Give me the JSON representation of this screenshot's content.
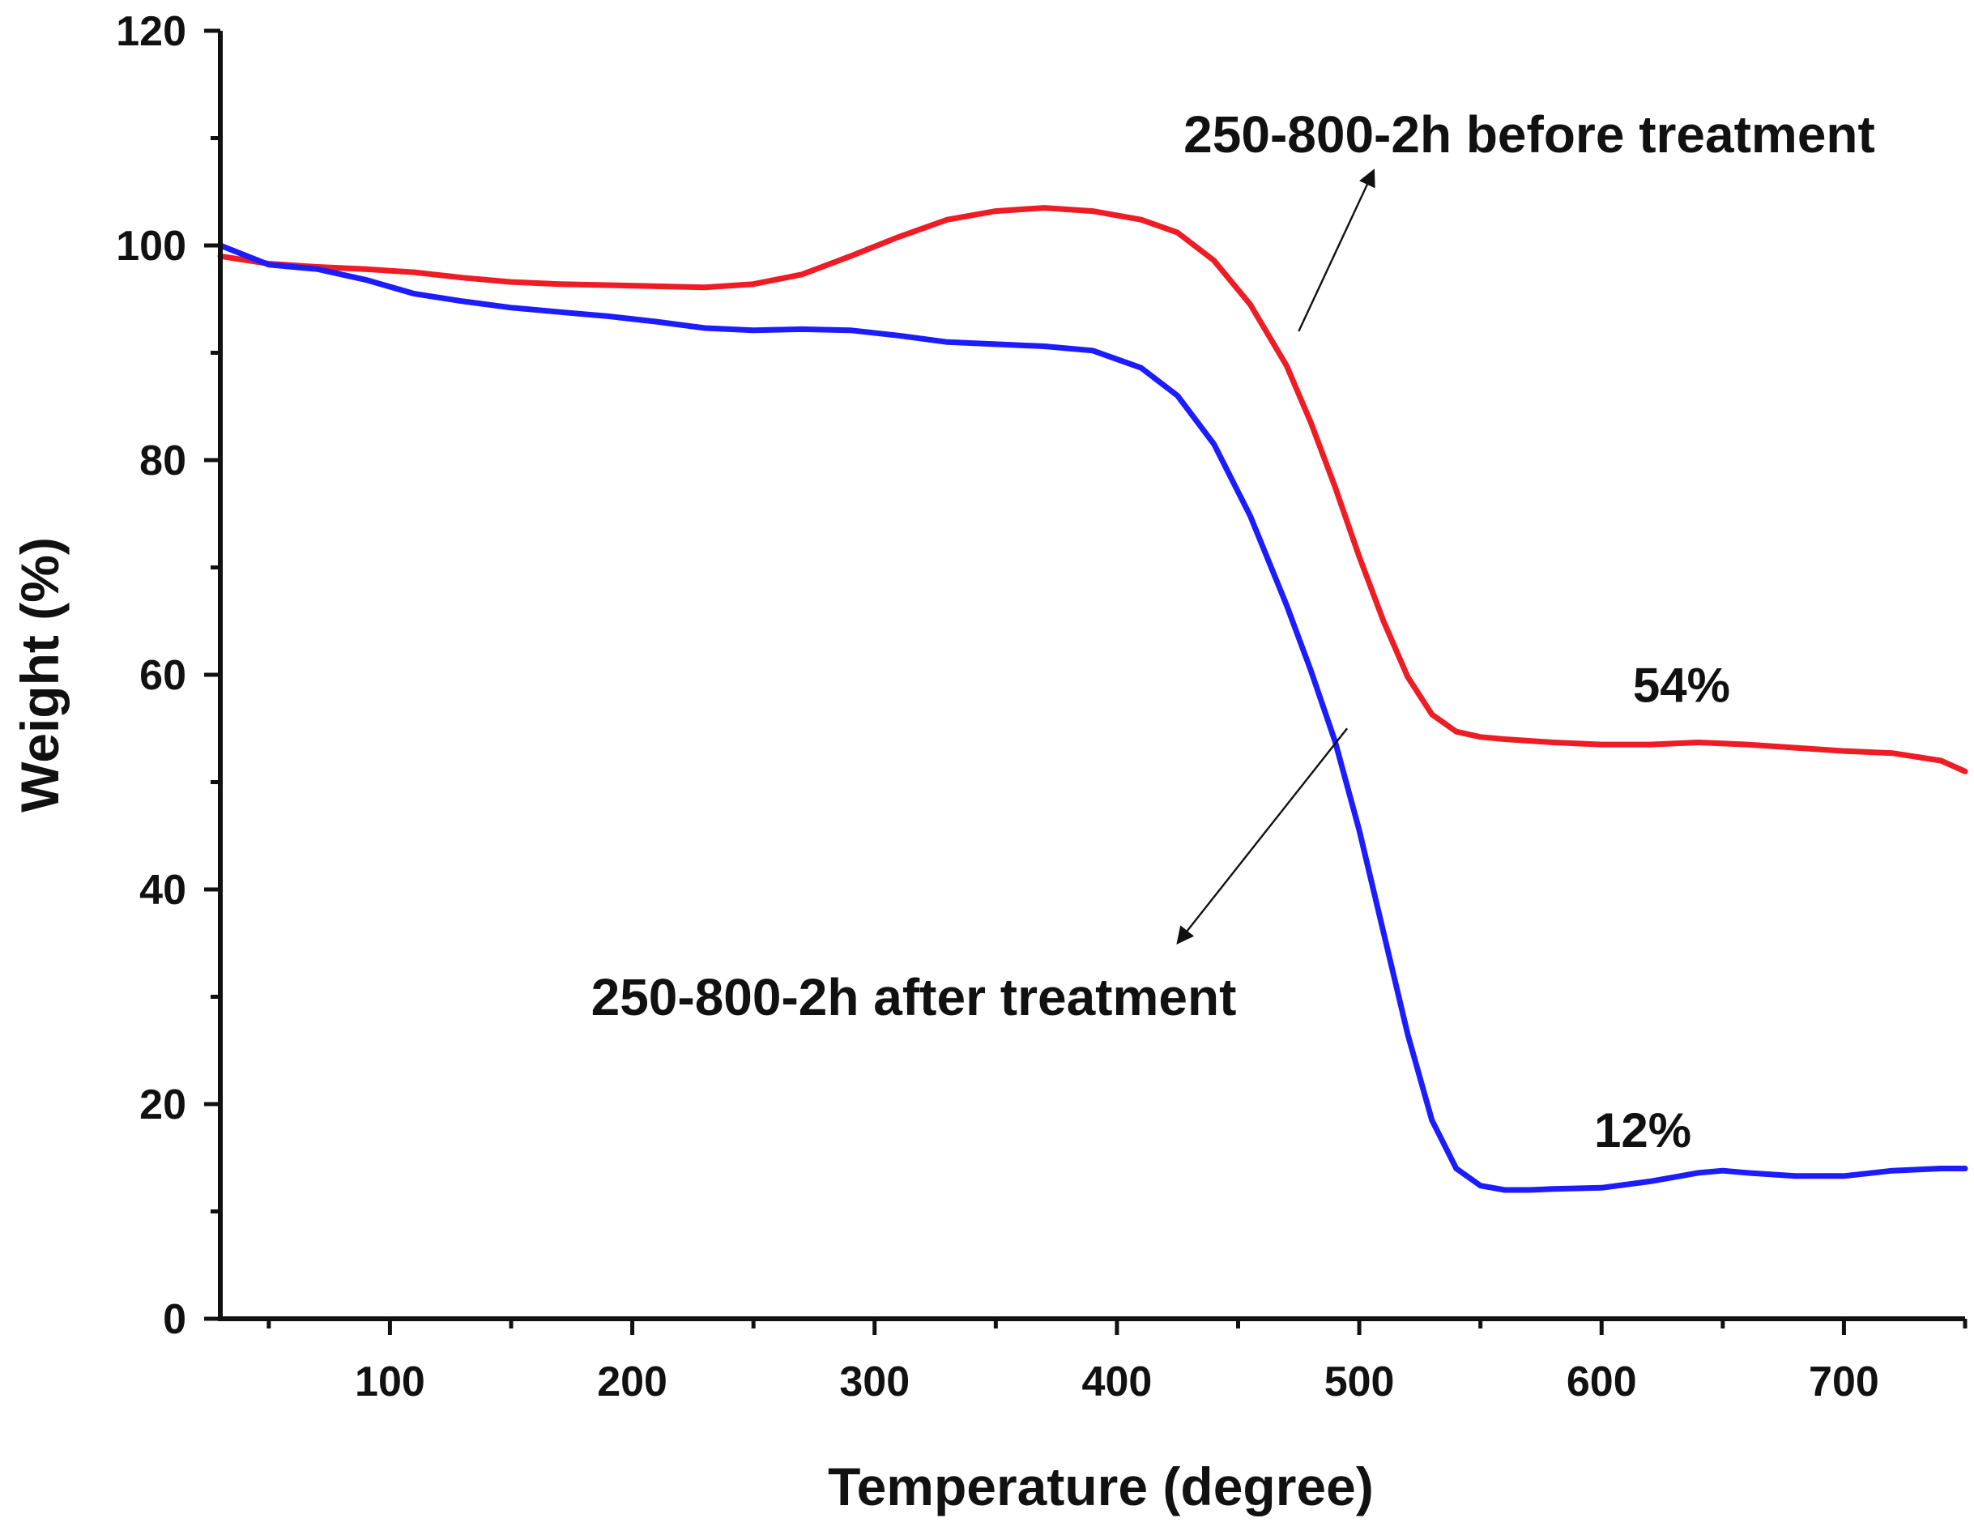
{
  "chart_data": {
    "type": "line",
    "title": "",
    "xlabel": "Temperature (degree)",
    "ylabel": "Weight (%)",
    "xlim": [
      30,
      750
    ],
    "ylim": [
      0,
      120
    ],
    "x_ticks": [
      100,
      200,
      300,
      400,
      500,
      600,
      700
    ],
    "x_minor_ticks": [
      50,
      150,
      250,
      350,
      450,
      550,
      650,
      750
    ],
    "y_ticks": [
      0,
      20,
      40,
      60,
      80,
      100,
      120
    ],
    "y_minor_ticks": [
      10,
      30,
      50,
      70,
      90,
      110
    ],
    "grid": false,
    "series": [
      {
        "name": "250-800-2h before treatment",
        "color": "#ee1c25",
        "x": [
          30,
          50,
          70,
          90,
          110,
          130,
          150,
          170,
          190,
          210,
          230,
          250,
          270,
          290,
          310,
          330,
          350,
          370,
          390,
          410,
          425,
          440,
          455,
          470,
          480,
          490,
          500,
          510,
          520,
          530,
          540,
          550,
          560,
          580,
          600,
          620,
          640,
          660,
          680,
          700,
          720,
          740,
          750
        ],
        "y": [
          99,
          98.3,
          98,
          97.8,
          97.5,
          97,
          96.6,
          96.4,
          96.3,
          96.2,
          96.1,
          96.4,
          97.3,
          99,
          100.8,
          102.4,
          103.2,
          103.5,
          103.2,
          102.4,
          101.2,
          98.6,
          94.5,
          88.8,
          83.5,
          77.5,
          71,
          65,
          59.8,
          56.3,
          54.7,
          54.2,
          54,
          53.7,
          53.5,
          53.5,
          53.7,
          53.5,
          53.2,
          52.9,
          52.7,
          52,
          51
        ]
      },
      {
        "name": "250-800-2h after treatment",
        "color": "#1c1cff",
        "x": [
          30,
          50,
          70,
          90,
          110,
          130,
          150,
          170,
          190,
          210,
          230,
          250,
          270,
          290,
          310,
          330,
          350,
          370,
          390,
          410,
          425,
          440,
          455,
          470,
          480,
          490,
          500,
          510,
          520,
          530,
          540,
          550,
          560,
          570,
          580,
          600,
          620,
          640,
          650,
          660,
          680,
          700,
          720,
          740,
          750
        ],
        "y": [
          100,
          98.2,
          97.8,
          96.8,
          95.5,
          94.8,
          94.2,
          93.8,
          93.4,
          92.9,
          92.3,
          92.1,
          92.2,
          92.1,
          91.6,
          91,
          90.8,
          90.6,
          90.2,
          88.6,
          86,
          81.5,
          74.8,
          66.5,
          60.4,
          53.8,
          45.5,
          36,
          26.5,
          18.5,
          14,
          12.4,
          12,
          12,
          12.1,
          12.2,
          12.8,
          13.6,
          13.8,
          13.6,
          13.3,
          13.3,
          13.8,
          14,
          14
        ]
      }
    ],
    "annotations": [
      {
        "text": "250-800-2h before treatment",
        "arrow_from": [
          475,
          92
        ],
        "arrow_to": [
          506,
          107
        ]
      },
      {
        "text": "250-800-2h after treatment",
        "arrow_from": [
          495,
          55
        ],
        "arrow_to": [
          425,
          35
        ]
      },
      {
        "text": "54%",
        "x": 633,
        "y": 59
      },
      {
        "text": "12%",
        "x": 617,
        "y": 17.5
      }
    ]
  }
}
